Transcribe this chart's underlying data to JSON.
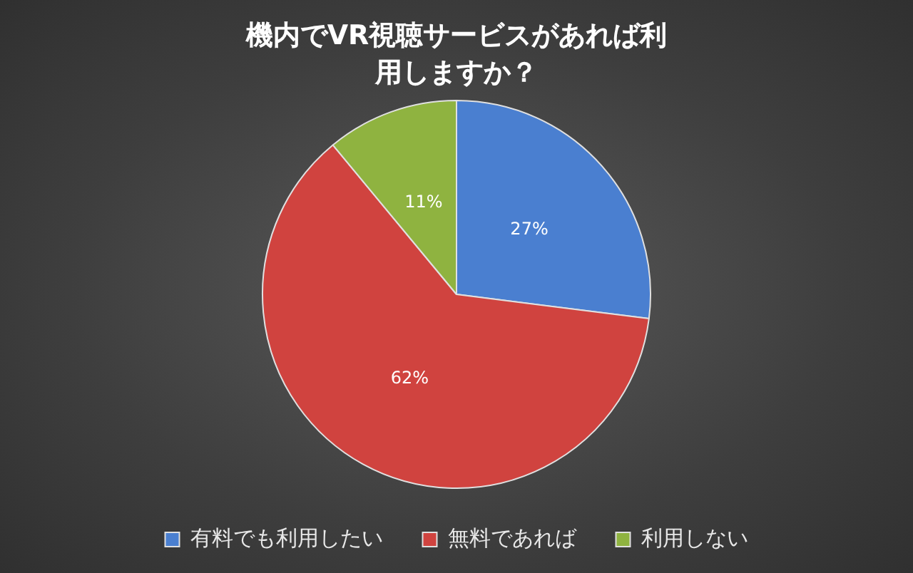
{
  "chart_data": {
    "type": "pie",
    "title": "機内でVR視聴サービスがあれば利用しますか？",
    "categories": [
      "有料でも利用したい",
      "無料であれば",
      "利用しない"
    ],
    "values": [
      27,
      62,
      11
    ],
    "colors": [
      "#4a7fd0",
      "#d0433f",
      "#8fb340"
    ],
    "value_labels": [
      "27%",
      "62%",
      "11%"
    ],
    "legend": "bottom"
  }
}
